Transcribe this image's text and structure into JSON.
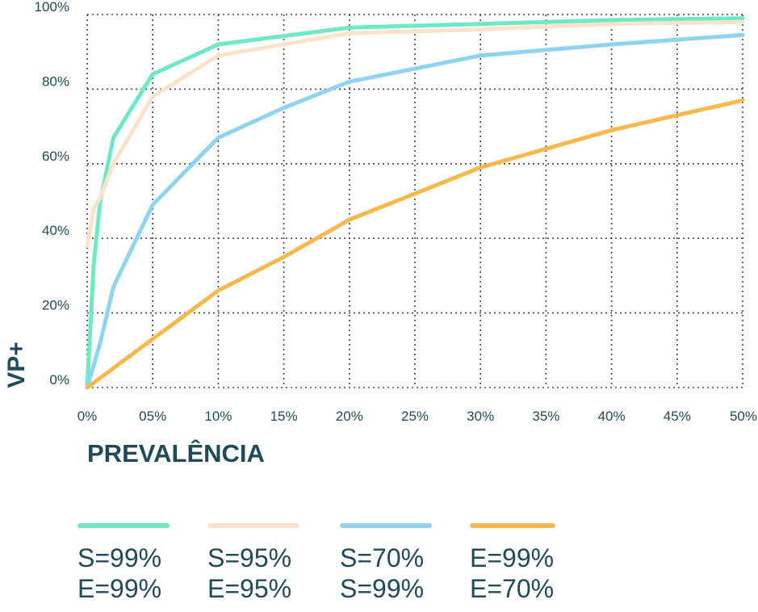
{
  "chart_data": {
    "type": "line",
    "xlabel": "PREVALÊNCIA",
    "ylabel": "VP+",
    "x_ticks": [
      "0%",
      "05%",
      "10%",
      "15%",
      "20%",
      "25%",
      "30%",
      "35%",
      "40%",
      "45%",
      "50%"
    ],
    "y_ticks": [
      "0%",
      "20%",
      "40%",
      "60%",
      "80%",
      "100%"
    ],
    "xlim": [
      0,
      50
    ],
    "ylim": [
      0,
      100
    ],
    "grid": true,
    "legend_position": "bottom",
    "series": [
      {
        "label_lines": [
          "S=99%",
          "E=99%"
        ],
        "color": "#6ee9c5",
        "x": [
          0,
          0.5,
          1,
          2,
          5,
          10,
          20,
          30,
          40,
          50
        ],
        "y": [
          0,
          33,
          50,
          67,
          84,
          92,
          96.5,
          97.5,
          98.5,
          99
        ]
      },
      {
        "label_lines": [
          "S=95%",
          "E=95%"
        ],
        "color": "#fbe3cb",
        "x": [
          0,
          0.5,
          1,
          2,
          5,
          10,
          20,
          30,
          40,
          50
        ],
        "y": [
          38,
          48,
          51,
          60,
          78,
          89,
          95,
          96,
          97.5,
          98
        ]
      },
      {
        "label_lines": [
          "S=70%",
          "S=99%"
        ],
        "color": "#8fd3f0",
        "x": [
          0,
          1,
          2,
          5,
          10,
          15,
          20,
          30,
          40,
          50
        ],
        "y": [
          0,
          12,
          27,
          49,
          67,
          75,
          82,
          89,
          92,
          94.5
        ]
      },
      {
        "label_lines": [
          "E=99%",
          "E=70%"
        ],
        "color": "#f8b84c",
        "x": [
          0,
          5,
          10,
          15,
          20,
          25,
          30,
          35,
          40,
          45,
          50
        ],
        "y": [
          0,
          13,
          26,
          35,
          45,
          52,
          59,
          64,
          69,
          73,
          77
        ]
      }
    ]
  }
}
